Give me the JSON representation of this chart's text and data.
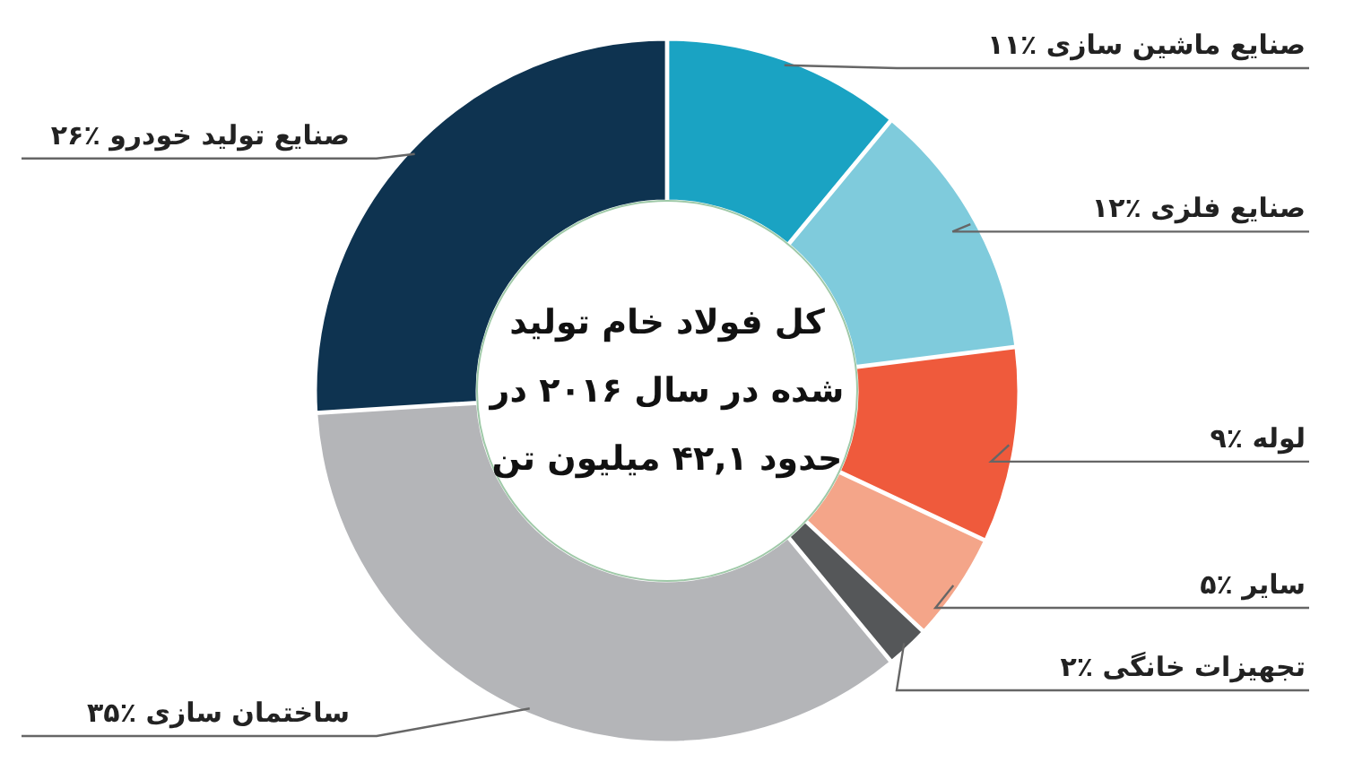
{
  "chart_data": {
    "type": "donut",
    "title": "کل فولاد خام تولید شده در سال ۲۰۱۶ در حدود ۴۲,۱ میلیون تن",
    "categories": [
      "صنایع ماشین سازی",
      "صنایع فلزی",
      "لوله",
      "سایر",
      "تجهیزات خانگی",
      "ساختمان سازی",
      "صنایع تولید خودرو"
    ],
    "values": [
      11,
      12,
      9,
      5,
      2,
      35,
      26
    ],
    "value_labels": [
      "٪۱۱",
      "٪۱۲",
      "٪۹",
      "٪۵",
      "٪۲",
      "٪۳۵",
      "٪۲۶"
    ],
    "colors": [
      "#1aa3c3",
      "#7fcbdc",
      "#ef5a3c",
      "#f4a589",
      "#555759",
      "#b4b5b8",
      "#0e3350"
    ]
  }
}
